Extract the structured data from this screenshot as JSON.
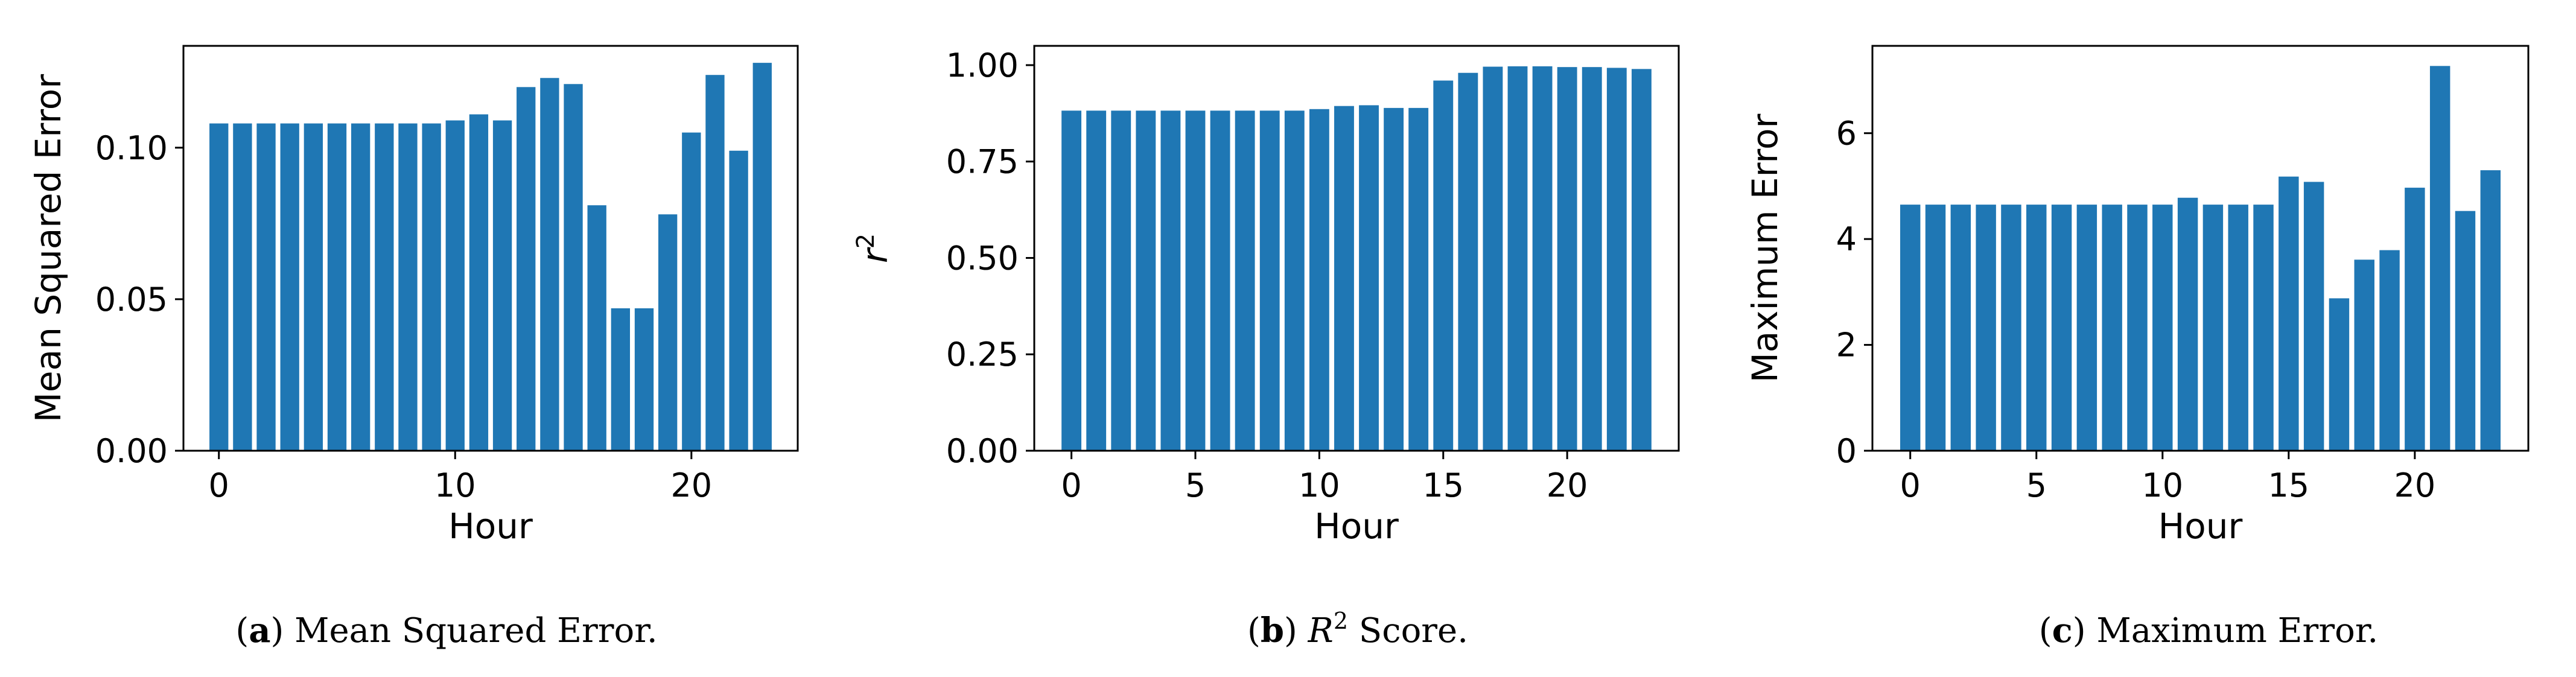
{
  "colors": {
    "bar": "#1f77b4",
    "axis": "#000000"
  },
  "chart_data": [
    {
      "type": "bar",
      "x": [
        0,
        1,
        2,
        3,
        4,
        5,
        6,
        7,
        8,
        9,
        10,
        11,
        12,
        13,
        14,
        15,
        16,
        17,
        18,
        19,
        20,
        21,
        22,
        23
      ],
      "values": [
        0.108,
        0.108,
        0.108,
        0.108,
        0.108,
        0.108,
        0.108,
        0.108,
        0.108,
        0.108,
        0.109,
        0.111,
        0.109,
        0.12,
        0.123,
        0.121,
        0.081,
        0.047,
        0.047,
        0.078,
        0.105,
        0.124,
        0.099,
        0.128
      ],
      "xlabel": "Hour",
      "ylabel": "Mean Squared Error",
      "xlim": [
        -1.5,
        24.5
      ],
      "ylim": [
        0,
        0.1336
      ],
      "xticks": [
        0,
        10,
        20
      ],
      "xtick_labels": [
        "0",
        "10",
        "20"
      ],
      "yticks": [
        0,
        0.05,
        0.1
      ],
      "ytick_labels": [
        "0.00",
        "0.05",
        "0.10"
      ],
      "grid": false,
      "caption_letter": "a",
      "caption_text": "Mean Squared Error."
    },
    {
      "type": "bar",
      "x": [
        0,
        1,
        2,
        3,
        4,
        5,
        6,
        7,
        8,
        9,
        10,
        11,
        12,
        13,
        14,
        15,
        16,
        17,
        18,
        19,
        20,
        21,
        22,
        23
      ],
      "values": [
        0.882,
        0.882,
        0.882,
        0.882,
        0.882,
        0.882,
        0.882,
        0.882,
        0.882,
        0.882,
        0.886,
        0.894,
        0.896,
        0.889,
        0.889,
        0.96,
        0.98,
        0.996,
        0.997,
        0.997,
        0.995,
        0.995,
        0.993,
        0.99
      ],
      "xlabel": "Hour",
      "ylabel": "r",
      "ylabel_sup": "2",
      "xlim": [
        -1.5,
        24.5
      ],
      "ylim": [
        0,
        1.05
      ],
      "xticks": [
        0,
        5,
        10,
        15,
        20
      ],
      "xtick_labels": [
        "0",
        "5",
        "10",
        "15",
        "20"
      ],
      "yticks": [
        0,
        0.25,
        0.5,
        0.75,
        1.0
      ],
      "ytick_labels": [
        "0.00",
        "0.25",
        "0.50",
        "0.75",
        "1.00"
      ],
      "grid": false,
      "caption_letter": "b",
      "caption_math": "R",
      "caption_sup": "2",
      "caption_text": "Score."
    },
    {
      "type": "bar",
      "x": [
        0,
        1,
        2,
        3,
        4,
        5,
        6,
        7,
        8,
        9,
        10,
        11,
        12,
        13,
        14,
        15,
        16,
        17,
        18,
        19,
        20,
        21,
        22,
        23
      ],
      "values": [
        4.65,
        4.65,
        4.65,
        4.65,
        4.65,
        4.65,
        4.65,
        4.65,
        4.65,
        4.65,
        4.65,
        4.78,
        4.65,
        4.65,
        4.65,
        5.18,
        5.08,
        2.88,
        3.61,
        3.79,
        4.97,
        7.27,
        4.53,
        5.3
      ],
      "xlabel": "Hour",
      "ylabel": "Maximum Error",
      "xlim": [
        -1.5,
        24.5
      ],
      "ylim": [
        0,
        7.65
      ],
      "xticks": [
        0,
        5,
        10,
        15,
        20
      ],
      "xtick_labels": [
        "0",
        "5",
        "10",
        "15",
        "20"
      ],
      "yticks": [
        0,
        2,
        4,
        6
      ],
      "ytick_labels": [
        "0",
        "2",
        "4",
        "6"
      ],
      "grid": false,
      "caption_letter": "c",
      "caption_text": "Maximum Error."
    }
  ]
}
